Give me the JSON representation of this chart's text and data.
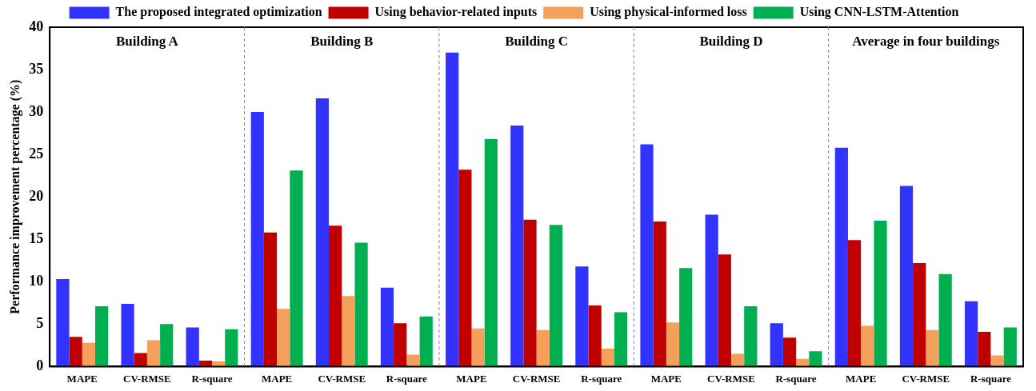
{
  "chart_data": {
    "type": "bar",
    "ylabel": "Performance improvement percentage (%)",
    "categories": [
      "MAPE",
      "CV-RMSE",
      "R-square",
      "MAPE",
      "CV-RMSE",
      "R-square",
      "MAPE",
      "CV-RMSE",
      "R-square",
      "MAPE",
      "CV-RMSE",
      "R-square",
      "MAPE",
      "CV-RMSE",
      "R-square"
    ],
    "series": [
      {
        "name": "The proposed integrated optimization",
        "color": "#3333ff",
        "values": [
          10.3,
          7.4,
          4.6,
          30,
          31.6,
          9.3,
          37,
          28.4,
          11.8,
          26.2,
          17.9,
          5.1,
          25.8,
          21.3,
          7.7
        ]
      },
      {
        "name": "Using behavior-related inputs",
        "color": "#c00000",
        "values": [
          3.5,
          1.6,
          0.7,
          15.8,
          16.6,
          5.1,
          23.2,
          17.3,
          7.2,
          17.1,
          13.2,
          3.4,
          14.9,
          12.2,
          4.1
        ]
      },
      {
        "name": "Using physical-informed loss",
        "color": "#f4a05a",
        "values": [
          2.8,
          3.1,
          0.6,
          6.8,
          8.3,
          1.4,
          4.5,
          4.3,
          2.1,
          5.2,
          1.5,
          0.9,
          4.8,
          4.3,
          1.3
        ]
      },
      {
        "name": "Using CNN-LSTM-Attention",
        "color": "#00b050",
        "values": [
          7.1,
          5.0,
          4.4,
          23.1,
          14.6,
          5.9,
          26.8,
          16.7,
          6.4,
          11.6,
          7.1,
          1.8,
          17.2,
          10.9,
          4.6
        ]
      }
    ],
    "annotations": [
      "Building A",
      "Building B",
      "Building C",
      "Building D",
      "Average in four buildings"
    ],
    "ylim": [
      0,
      40
    ],
    "yticks": [
      0,
      5,
      10,
      15,
      20,
      25,
      30,
      35,
      40
    ],
    "grid": false,
    "legend": "top"
  }
}
